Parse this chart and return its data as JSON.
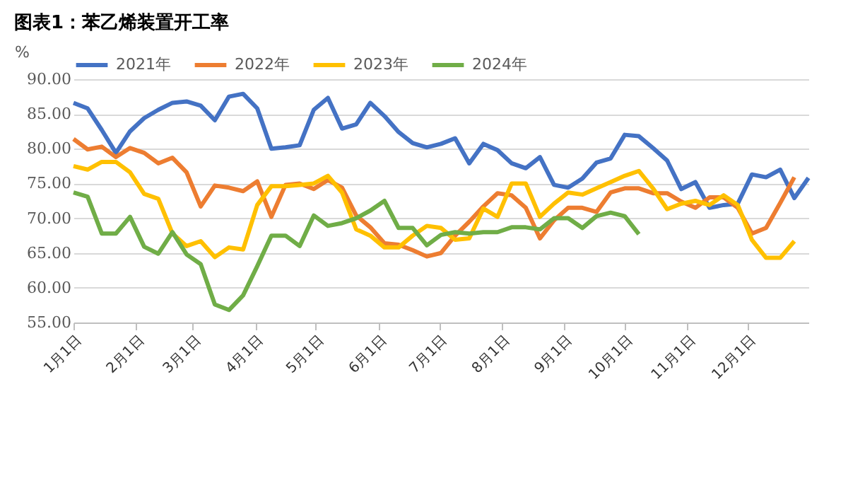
{
  "chart_data": {
    "type": "line",
    "title": "图表1：苯乙烯装置开工率",
    "ylabel": "%",
    "x": [
      "--01-01",
      "--01-08",
      "--01-15",
      "--01-22",
      "--01-29",
      "--02-05",
      "--02-12",
      "--02-19",
      "--02-26",
      "--03-05",
      "--03-12",
      "--03-19",
      "--03-26",
      "--04-02",
      "--04-09",
      "--04-16",
      "--04-23",
      "--04-30",
      "--05-07",
      "--05-14",
      "--05-21",
      "--05-28",
      "--06-04",
      "--06-11",
      "--06-18",
      "--06-25",
      "--07-02",
      "--07-09",
      "--07-16",
      "--07-23",
      "--07-30",
      "--08-06",
      "--08-13",
      "--08-20",
      "--08-27",
      "--09-03",
      "--09-10",
      "--09-17",
      "--09-24",
      "--10-01",
      "--10-08",
      "--10-15",
      "--10-22",
      "--10-29",
      "--11-05",
      "--11-12",
      "--11-19",
      "--11-26",
      "--12-03",
      "--12-10",
      "--12-17",
      "--12-24",
      "--12-31"
    ],
    "series": [
      {
        "name": "2021年",
        "color": "#4472c4",
        "values": [
          86.6,
          85.8,
          82.7,
          79.4,
          82.5,
          84.4,
          85.6,
          86.6,
          86.8,
          86.2,
          84.1,
          87.5,
          87.9,
          85.8,
          80,
          80.2,
          80.5,
          85.6,
          87.3,
          82.9,
          83.5,
          86.6,
          84.7,
          82.4,
          80.8,
          80.2,
          80.7,
          81.5,
          77.9,
          80.7,
          79.8,
          77.9,
          77.2,
          78.8,
          74.8,
          74.4,
          75.7,
          78,
          78.6,
          82,
          81.8,
          80.1,
          78.3,
          74.2,
          75.2,
          71.5,
          71.9,
          72.1,
          76.3,
          75.9,
          77,
          72.9,
          75.8
        ]
      },
      {
        "name": "2022年",
        "color": "#ed7d31",
        "values": [
          81.4,
          79.9,
          80.3,
          78.8,
          80.1,
          79.4,
          77.9,
          78.7,
          76.6,
          71.7,
          74.7,
          74.4,
          73.9,
          75.3,
          70.2,
          74.8,
          75,
          74.2,
          75.5,
          74.4,
          70.4,
          68.7,
          66.4,
          66.2,
          65.4,
          64.5,
          65,
          67.5,
          69.5,
          71.7,
          73.6,
          73.3,
          71.5,
          67.1,
          69.7,
          71.5,
          71.5,
          70.9,
          73.7,
          74.3,
          74.3,
          73.6,
          73.6,
          72.4,
          71.5,
          73,
          73,
          71.5,
          67.8,
          68.6,
          72.2,
          75.9,
          null
        ]
      },
      {
        "name": "2023年",
        "color": "#ffc000",
        "values": [
          77.5,
          77,
          78.1,
          78.1,
          76.6,
          73.5,
          72.8,
          67.8,
          66,
          66.7,
          64.4,
          65.8,
          65.5,
          71.9,
          74.6,
          74.6,
          74.8,
          75,
          76.1,
          73.7,
          68.4,
          67.5,
          65.8,
          65.8,
          67.5,
          68.9,
          68.6,
          66.9,
          67.1,
          71.4,
          70.2,
          75,
          75,
          70.2,
          72.1,
          73.7,
          73.4,
          74.3,
          75.2,
          76.1,
          76.8,
          74.3,
          71.3,
          72.1,
          72.5,
          71.9,
          73.3,
          71.9,
          66.9,
          64.3,
          64.3,
          66.7,
          null
        ]
      },
      {
        "name": "2024年",
        "color": "#70ad47",
        "values": [
          73.7,
          73.1,
          67.8,
          67.8,
          70.2,
          65.9,
          64.9,
          68,
          64.8,
          63.4,
          57.6,
          56.8,
          58.9,
          63.1,
          67.5,
          67.5,
          66,
          70.4,
          68.9,
          69.3,
          70,
          71.1,
          72.5,
          68.6,
          68.6,
          66.1,
          67.6,
          68,
          67.8,
          68,
          68,
          68.7,
          68.7,
          68.4,
          70,
          70,
          68.6,
          70.3,
          70.8,
          70.3,
          67.7,
          null,
          null,
          null,
          null,
          null,
          null,
          null,
          null,
          null,
          null,
          null,
          null
        ]
      }
    ],
    "xlim": [
      "--01-01",
      "--12-31"
    ],
    "xticks": [
      {
        "value": "--01-01",
        "label": "1月1日"
      },
      {
        "value": "--02-01",
        "label": "2月1日"
      },
      {
        "value": "--03-01",
        "label": "3月1日"
      },
      {
        "value": "--04-01",
        "label": "4月1日"
      },
      {
        "value": "--05-01",
        "label": "5月1日"
      },
      {
        "value": "--06-01",
        "label": "6月1日"
      },
      {
        "value": "--07-01",
        "label": "7月1日"
      },
      {
        "value": "--08-01",
        "label": "8月1日"
      },
      {
        "value": "--09-01",
        "label": "9月1日"
      },
      {
        "value": "--10-01",
        "label": "10月1日"
      },
      {
        "value": "--11-01",
        "label": "11月1日"
      },
      {
        "value": "--12-01",
        "label": "12月1日"
      }
    ],
    "ylim": [
      55,
      90
    ],
    "yticks": [
      {
        "value": 55,
        "label": "55.00"
      },
      {
        "value": 60,
        "label": "60.00"
      },
      {
        "value": 65,
        "label": "65.00"
      },
      {
        "value": 70,
        "label": "70.00"
      },
      {
        "value": 75,
        "label": "75.00"
      },
      {
        "value": 80,
        "label": "80.00"
      },
      {
        "value": 85,
        "label": "85.00"
      },
      {
        "value": 90,
        "label": "90.00"
      }
    ],
    "grid": "y",
    "legend": "top",
    "marker": "none",
    "line_style": "solid"
  }
}
